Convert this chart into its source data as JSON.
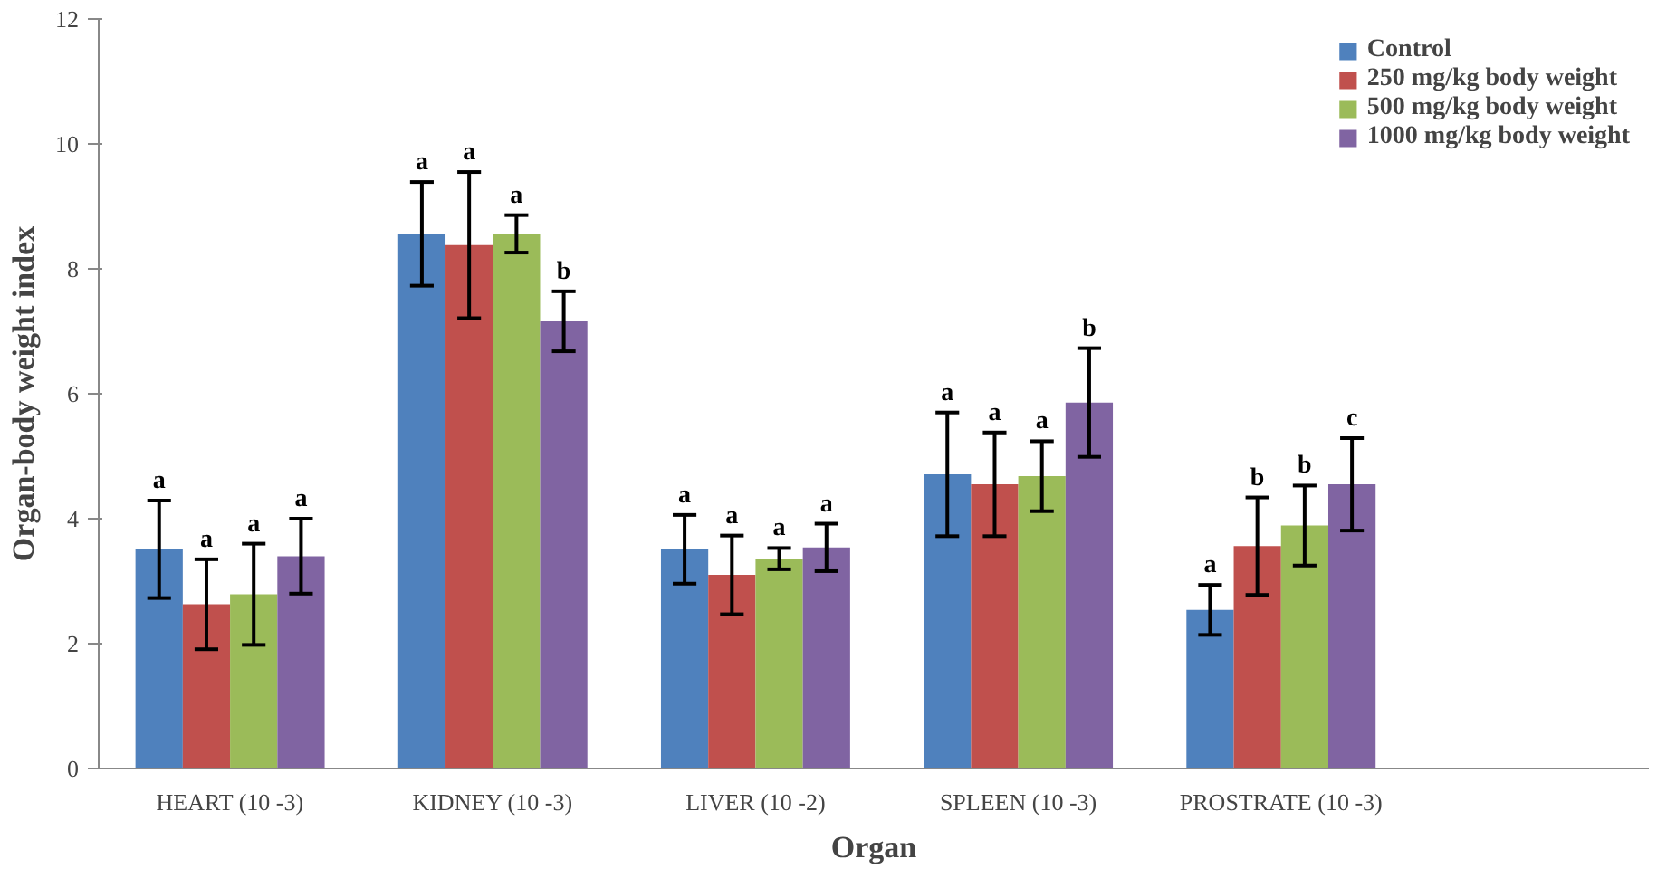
{
  "chart_data": {
    "type": "bar",
    "xlabel": "Organ",
    "ylabel": "Organ-body weight index",
    "categories": [
      "HEART (10 -3)",
      "KIDNEY (10 -3)",
      "LIVER (10 -2)",
      "SPLEEN (10 -3)",
      "PROSTRATE (10 -3)"
    ],
    "series": [
      {
        "name": "Control",
        "color": "#4f81bd",
        "values": [
          3.51,
          8.56,
          3.51,
          4.71,
          2.54
        ],
        "errors": [
          0.78,
          0.83,
          0.55,
          0.99,
          0.4
        ],
        "value_labels": [
          "a",
          "a",
          "a",
          "a",
          "a"
        ]
      },
      {
        "name": "250 mg/kg body weight",
        "color": "#c0504d",
        "values": [
          2.63,
          8.38,
          3.1,
          4.55,
          3.56
        ],
        "errors": [
          0.72,
          1.17,
          0.63,
          0.83,
          0.78
        ],
        "value_labels": [
          "a",
          "a",
          "a",
          "a",
          "b"
        ]
      },
      {
        "name": "500 mg/kg body weight",
        "color": "#9bbb59",
        "values": [
          2.79,
          8.56,
          3.36,
          4.68,
          3.89
        ],
        "errors": [
          0.81,
          0.3,
          0.17,
          0.56,
          0.64
        ],
        "value_labels": [
          "a",
          "a",
          "a",
          "a",
          "b"
        ]
      },
      {
        "name": "1000 mg/kg body weight",
        "color": "#8064a2",
        "values": [
          3.4,
          7.16,
          3.54,
          5.86,
          4.55
        ],
        "errors": [
          0.6,
          0.48,
          0.38,
          0.87,
          0.74
        ],
        "value_labels": [
          "a",
          "b",
          "a",
          "b",
          "c"
        ]
      }
    ],
    "ylim": [
      0,
      12
    ],
    "yticks": [
      0,
      2,
      4,
      6,
      8,
      10,
      12
    ],
    "grid": false,
    "legend": "top right"
  }
}
